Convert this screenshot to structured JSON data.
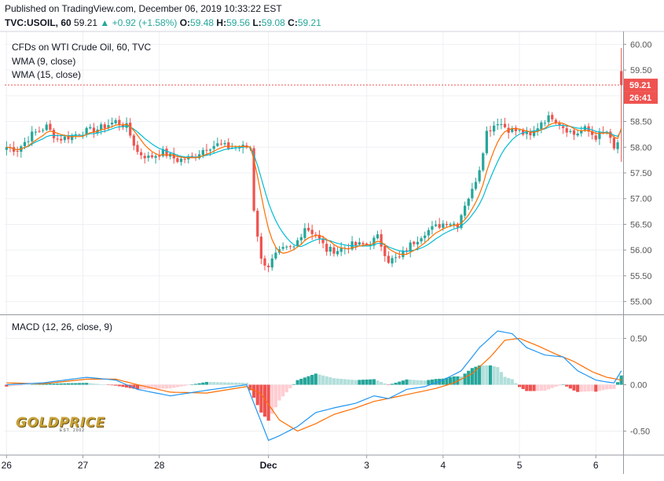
{
  "header": {
    "published": "Published on TradingView.com, December 06, 2019 10:33:22 EST",
    "symbol": "TVC:USOIL, 60",
    "last": "59.21",
    "change": "▲ +0.92 (+1.58%)",
    "o_label": "O:",
    "o": "59.48",
    "h_label": "H:",
    "h": "59.56",
    "l_label": "L:",
    "l": "59.08",
    "c_label": "C:",
    "c": "59.21"
  },
  "legend": {
    "title": "CFDs on WTI Crude Oil, 60, TVC",
    "wma9": "WMA (9, close)",
    "wma15": "WMA (15, close)",
    "macd": "MACD (12, 26, close, 9)"
  },
  "price_badge": {
    "value": "59.21",
    "countdown": "26:41"
  },
  "logo": {
    "text": "GOLDPRICE",
    "sub": "EST. 2002"
  },
  "colors": {
    "up": "#26a69a",
    "down": "#ef5350",
    "wma9": "#ff6d00",
    "wma15": "#00bcd4",
    "macd": "#2196f3",
    "signal": "#ff6d00",
    "grid": "#eef0f3",
    "axis": "#555555",
    "hist_up_strong": "#26a69a",
    "hist_up_weak": "#b2dfdb",
    "hist_down_strong": "#ef5350",
    "hist_down_weak": "#ffcdd2"
  },
  "chart_data": [
    {
      "type": "candlestick",
      "title": "CFDs on WTI Crude Oil, 60, TVC",
      "series": [
        {
          "name": "WMA (9, close)"
        },
        {
          "name": "WMA (15, close)"
        }
      ],
      "ylim": [
        54.75,
        60.25
      ],
      "y_ticks": [
        "60.00",
        "59.50",
        "59.00",
        "58.50",
        "58.00",
        "57.50",
        "57.00",
        "56.50",
        "56.00",
        "55.50",
        "55.00"
      ],
      "last_price": 59.21,
      "anchors": [
        [
          0,
          58.0
        ],
        [
          3,
          57.95
        ],
        [
          7,
          58.25
        ],
        [
          11,
          58.4
        ],
        [
          14,
          58.15
        ],
        [
          17,
          58.2
        ],
        [
          21,
          58.3
        ],
        [
          25,
          58.35
        ],
        [
          30,
          58.5
        ],
        [
          33,
          58.4
        ],
        [
          36,
          57.9
        ],
        [
          39,
          57.8
        ],
        [
          43,
          57.9
        ],
        [
          47,
          57.75
        ],
        [
          51,
          57.8
        ],
        [
          55,
          58.0
        ],
        [
          58,
          58.05
        ],
        [
          61,
          58.0
        ],
        [
          64,
          58.0
        ],
        [
          67,
          58.0
        ],
        [
          68,
          56.8
        ],
        [
          70,
          55.8
        ],
        [
          72,
          55.7
        ],
        [
          74,
          55.9
        ],
        [
          76,
          56.0
        ],
        [
          79,
          56.05
        ],
        [
          82,
          56.45
        ],
        [
          85,
          56.3
        ],
        [
          88,
          56.0
        ],
        [
          91,
          56.0
        ],
        [
          95,
          56.1
        ],
        [
          99,
          56.1
        ],
        [
          102,
          56.25
        ],
        [
          105,
          55.8
        ],
        [
          108,
          55.85
        ],
        [
          111,
          56.1
        ],
        [
          115,
          56.35
        ],
        [
          118,
          56.45
        ],
        [
          121,
          56.55
        ],
        [
          124,
          56.5
        ],
        [
          126,
          56.9
        ],
        [
          128,
          57.15
        ],
        [
          130,
          57.6
        ],
        [
          132,
          58.3
        ],
        [
          135,
          58.5
        ],
        [
          138,
          58.35
        ],
        [
          141,
          58.3
        ],
        [
          144,
          58.2
        ],
        [
          147,
          58.5
        ],
        [
          150,
          58.6
        ],
        [
          153,
          58.4
        ],
        [
          156,
          58.25
        ],
        [
          159,
          58.35
        ],
        [
          162,
          58.2
        ],
        [
          165,
          58.3
        ],
        [
          167,
          57.95
        ],
        [
          168,
          58.1
        ],
        [
          169,
          59.21
        ]
      ],
      "x_ticks": [
        {
          "label": "26",
          "i": 0
        },
        {
          "label": "27",
          "i": 21
        },
        {
          "label": "28",
          "i": 42
        },
        {
          "label": "Dec",
          "i": 72
        },
        {
          "label": "3",
          "i": 99
        },
        {
          "label": "4",
          "i": 120
        },
        {
          "label": "5",
          "i": 141
        },
        {
          "label": "6",
          "i": 162
        }
      ]
    },
    {
      "type": "macd",
      "title": "MACD (12, 26, close, 9)",
      "ylim": [
        -0.75,
        0.75
      ],
      "y_ticks": [
        "0.50",
        "0.00",
        "-0.50"
      ],
      "macd_anchors": [
        [
          0,
          0.0
        ],
        [
          10,
          0.02
        ],
        [
          22,
          0.08
        ],
        [
          30,
          0.05
        ],
        [
          36,
          -0.05
        ],
        [
          45,
          -0.12
        ],
        [
          55,
          -0.06
        ],
        [
          66,
          0.0
        ],
        [
          68,
          -0.2
        ],
        [
          72,
          -0.6
        ],
        [
          75,
          -0.55
        ],
        [
          80,
          -0.45
        ],
        [
          85,
          -0.3
        ],
        [
          90,
          -0.25
        ],
        [
          96,
          -0.2
        ],
        [
          101,
          -0.12
        ],
        [
          105,
          -0.15
        ],
        [
          110,
          -0.05
        ],
        [
          115,
          -0.02
        ],
        [
          120,
          0.05
        ],
        [
          125,
          0.15
        ],
        [
          130,
          0.4
        ],
        [
          135,
          0.58
        ],
        [
          139,
          0.55
        ],
        [
          143,
          0.4
        ],
        [
          148,
          0.32
        ],
        [
          153,
          0.3
        ],
        [
          157,
          0.15
        ],
        [
          162,
          0.05
        ],
        [
          165,
          0.03
        ],
        [
          167,
          0.02
        ],
        [
          169,
          0.15
        ]
      ],
      "signal_anchors": [
        [
          0,
          0.02
        ],
        [
          10,
          0.01
        ],
        [
          22,
          0.06
        ],
        [
          30,
          0.06
        ],
        [
          36,
          0.0
        ],
        [
          45,
          -0.08
        ],
        [
          55,
          -0.09
        ],
        [
          66,
          -0.02
        ],
        [
          70,
          -0.1
        ],
        [
          75,
          -0.38
        ],
        [
          80,
          -0.5
        ],
        [
          85,
          -0.42
        ],
        [
          90,
          -0.32
        ],
        [
          96,
          -0.25
        ],
        [
          101,
          -0.18
        ],
        [
          106,
          -0.14
        ],
        [
          112,
          -0.09
        ],
        [
          118,
          -0.04
        ],
        [
          123,
          0.02
        ],
        [
          128,
          0.12
        ],
        [
          133,
          0.3
        ],
        [
          137,
          0.48
        ],
        [
          141,
          0.5
        ],
        [
          146,
          0.42
        ],
        [
          151,
          0.33
        ],
        [
          156,
          0.25
        ],
        [
          161,
          0.14
        ],
        [
          165,
          0.08
        ],
        [
          169,
          0.05
        ]
      ]
    }
  ]
}
